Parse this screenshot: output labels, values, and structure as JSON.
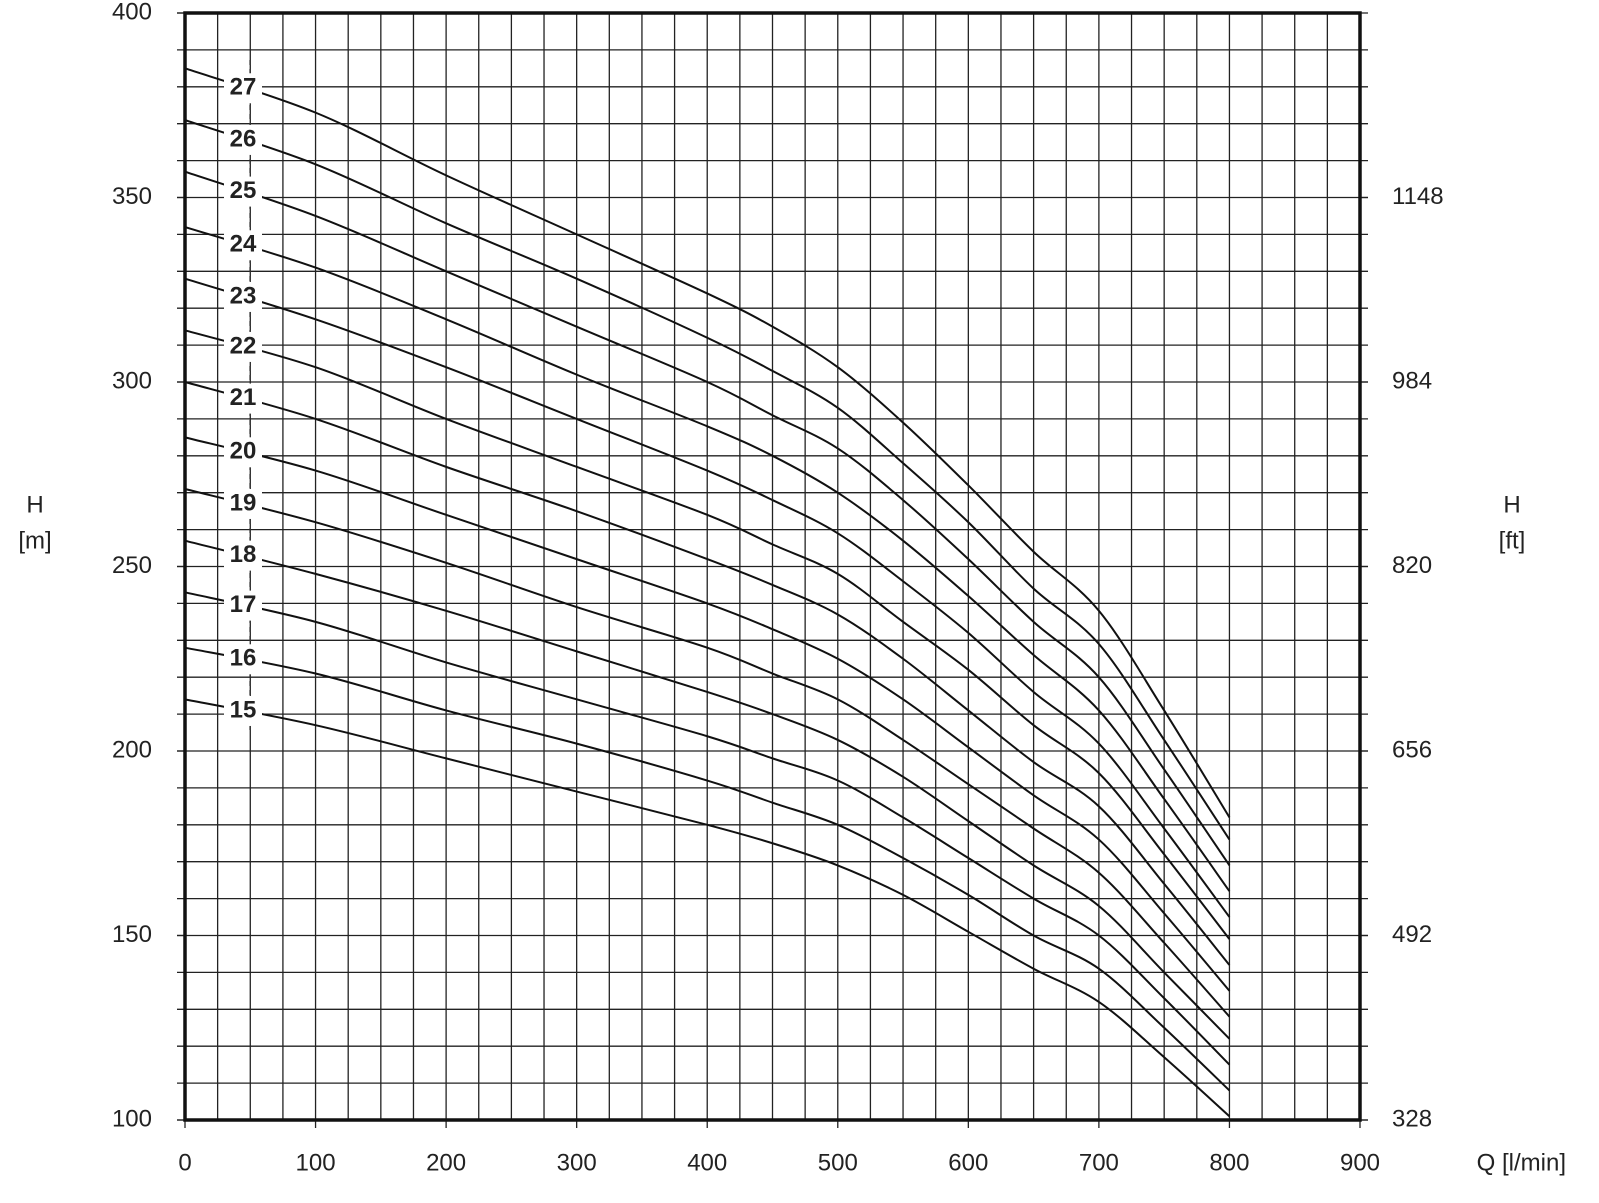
{
  "chart_data": {
    "type": "line",
    "x_label": "Q [l/min]",
    "y_label": "H",
    "y_unit": "[m]",
    "y2_label": "H",
    "y2_unit": "[ft]",
    "xlim": [
      0,
      900
    ],
    "xticks": [
      0,
      100,
      200,
      300,
      400,
      500,
      600,
      700,
      800,
      900
    ],
    "ylim": [
      100,
      400
    ],
    "yticks": [
      100,
      150,
      200,
      250,
      300,
      350,
      400
    ],
    "y2lim": [
      328,
      1312
    ],
    "y2ticks": [
      328,
      492,
      656,
      820,
      984,
      1148
    ],
    "xgrid": [
      0,
      25,
      50,
      75,
      100,
      125,
      150,
      175,
      200,
      225,
      250,
      275,
      300,
      325,
      350,
      375,
      400,
      425,
      450,
      475,
      500,
      525,
      550,
      575,
      600,
      625,
      650,
      675,
      700,
      725,
      750,
      775,
      800,
      825,
      850,
      875,
      900
    ],
    "ygrid": [
      100,
      110,
      120,
      130,
      140,
      150,
      160,
      170,
      180,
      190,
      200,
      210,
      220,
      230,
      240,
      250,
      260,
      270,
      280,
      290,
      300,
      310,
      320,
      330,
      340,
      350,
      360,
      370,
      380,
      390,
      400
    ],
    "grid": true,
    "color": "#111111",
    "x": [
      0,
      100,
      200,
      300,
      400,
      450,
      500,
      550,
      600,
      650,
      700,
      750,
      800
    ],
    "series": [
      {
        "name": "15",
        "values": [
          214,
          207,
          198,
          189,
          180,
          175,
          169,
          161,
          151,
          141,
          132,
          117,
          101
        ]
      },
      {
        "name": "16",
        "values": [
          228,
          221,
          211,
          202,
          192,
          186,
          180,
          171,
          161,
          150,
          141,
          125,
          108
        ]
      },
      {
        "name": "17",
        "values": [
          243,
          235,
          224,
          214,
          204,
          198,
          192,
          182,
          171,
          160,
          150,
          133,
          115
        ]
      },
      {
        "name": "18",
        "values": [
          257,
          248,
          238,
          227,
          216,
          210,
          203,
          193,
          181,
          169,
          158,
          140,
          122
        ]
      },
      {
        "name": "19",
        "values": [
          271,
          262,
          251,
          239,
          228,
          221,
          214,
          203,
          191,
          179,
          167,
          148,
          128
        ]
      },
      {
        "name": "20",
        "values": [
          285,
          276,
          264,
          252,
          240,
          233,
          225,
          214,
          201,
          188,
          176,
          156,
          135
        ]
      },
      {
        "name": "21",
        "values": [
          300,
          290,
          277,
          265,
          252,
          245,
          237,
          225,
          211,
          197,
          185,
          164,
          142
        ]
      },
      {
        "name": "22",
        "values": [
          314,
          304,
          290,
          277,
          264,
          256,
          248,
          235,
          222,
          207,
          194,
          172,
          149
        ]
      },
      {
        "name": "23",
        "values": [
          328,
          317,
          304,
          290,
          276,
          268,
          259,
          246,
          232,
          216,
          202,
          179,
          155
        ]
      },
      {
        "name": "24",
        "values": [
          342,
          331,
          317,
          302,
          288,
          280,
          270,
          257,
          242,
          226,
          211,
          187,
          162
        ]
      },
      {
        "name": "25",
        "values": [
          357,
          345,
          330,
          315,
          300,
          291,
          282,
          268,
          252,
          235,
          220,
          195,
          169
        ]
      },
      {
        "name": "26",
        "values": [
          371,
          359,
          343,
          328,
          312,
          303,
          293,
          278,
          262,
          244,
          229,
          203,
          176
        ]
      },
      {
        "name": "27",
        "values": [
          385,
          373,
          356,
          340,
          324,
          315,
          304,
          289,
          272,
          254,
          238,
          211,
          182
        ]
      }
    ]
  }
}
